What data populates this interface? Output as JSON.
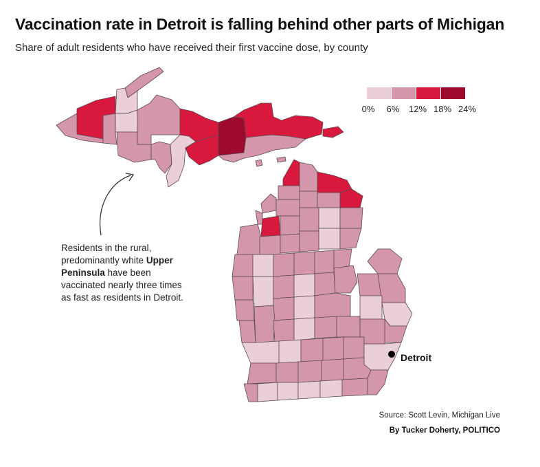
{
  "title": "Vaccination rate in Detroit is falling behind other parts of Michigan",
  "subtitle": "Share of adult residents who have received their first vaccine dose, by county",
  "legend": {
    "ticks": [
      "0%",
      "6%",
      "12%",
      "18%",
      "24%"
    ],
    "colors": [
      "#ebcfd7",
      "#d496ab",
      "#d8183c",
      "#9e0a2e"
    ]
  },
  "annotation": {
    "text_before": "Residents in the rural, predominantly white ",
    "emphasis": "Upper Peninsula",
    "text_after": " have been vaccinated nearly three times as fast as residents in Detroit."
  },
  "city": {
    "name": "Detroit"
  },
  "source": "Source: Scott Levin, Michigan Live",
  "credit": "By Tucker Doherty, POLITICO",
  "map_data": {
    "type": "choropleth",
    "region": "Michigan counties",
    "bins": [
      "0-6%",
      "6-12%",
      "12-18%",
      "18-24%"
    ]
  },
  "colors": {
    "background": "#ffffff",
    "border": "#5a4a50",
    "marker": "#000000"
  }
}
